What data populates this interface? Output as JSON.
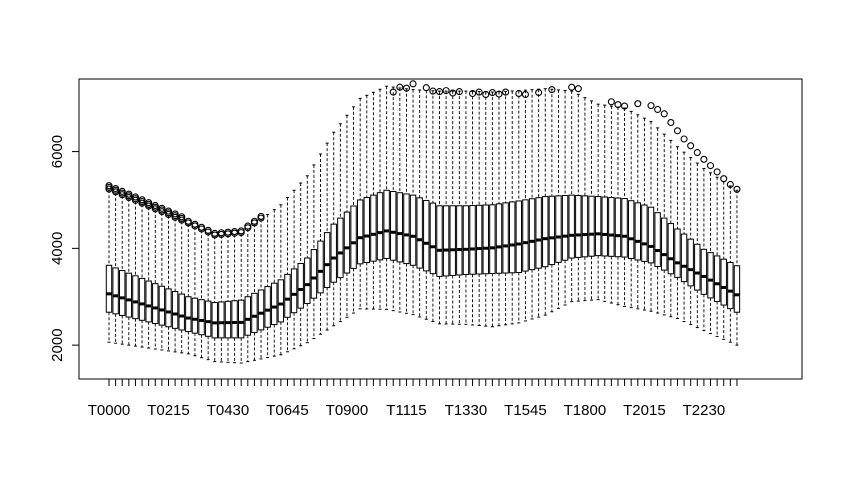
{
  "chart_data": {
    "type": "boxplot",
    "title": "",
    "xlabel": "",
    "ylabel": "",
    "ylim": [
      1300,
      7500
    ],
    "y_ticks": [
      2000,
      4000,
      6000
    ],
    "x_tick_labels": [
      "T0000",
      "T0215",
      "T0430",
      "T0645",
      "T0900",
      "T1115",
      "T1330",
      "T1545",
      "T1800",
      "T2015",
      "T2230"
    ],
    "category_interval_minutes": 15,
    "n_categories": 96,
    "style": {
      "color": "#000000",
      "whisker": "dashed"
    },
    "profile_keyframes": {
      "index": [
        0,
        12,
        16,
        20,
        26,
        30,
        34,
        38,
        42,
        46,
        50,
        54,
        58,
        62,
        66,
        70,
        74,
        78,
        82,
        86,
        90,
        95
      ],
      "median": [
        3060,
        2560,
        2460,
        2470,
        2850,
        3250,
        3800,
        4220,
        4360,
        4250,
        3960,
        3980,
        4010,
        4090,
        4200,
        4270,
        4300,
        4250,
        4040,
        3700,
        3420,
        3040
      ],
      "q1": [
        2680,
        2280,
        2150,
        2150,
        2480,
        2860,
        3300,
        3680,
        3790,
        3650,
        3420,
        3460,
        3480,
        3500,
        3620,
        3800,
        3850,
        3820,
        3700,
        3400,
        3050,
        2680
      ],
      "q3": [
        3650,
        3000,
        2880,
        2930,
        3350,
        3800,
        4500,
        5000,
        5200,
        5100,
        4880,
        4880,
        4900,
        4980,
        5070,
        5100,
        5070,
        5030,
        4850,
        4400,
        3980,
        3640
      ],
      "whisker_low": [
        2060,
        1820,
        1660,
        1630,
        1800,
        2050,
        2400,
        2750,
        2740,
        2630,
        2440,
        2430,
        2380,
        2460,
        2620,
        2900,
        2940,
        2800,
        2700,
        2550,
        2300,
        2000
      ],
      "whisker_high": [
        5200,
        4500,
        4250,
        4300,
        4900,
        5500,
        6400,
        7100,
        7350,
        7280,
        7250,
        7250,
        7230,
        7260,
        7300,
        7250,
        6980,
        6900,
        6620,
        6100,
        5650,
        5200
      ]
    },
    "outlier_range_indices": [
      0,
      23
    ],
    "outliers_upper": [
      {
        "index": 43,
        "value": 7230
      },
      {
        "index": 44,
        "value": 7330
      },
      {
        "index": 45,
        "value": 7310
      },
      {
        "index": 46,
        "value": 7400
      },
      {
        "index": 48,
        "value": 7320
      },
      {
        "index": 49,
        "value": 7250
      },
      {
        "index": 50,
        "value": 7240
      },
      {
        "index": 51,
        "value": 7260
      },
      {
        "index": 52,
        "value": 7210
      },
      {
        "index": 53,
        "value": 7240
      },
      {
        "index": 55,
        "value": 7200
      },
      {
        "index": 56,
        "value": 7230
      },
      {
        "index": 57,
        "value": 7180
      },
      {
        "index": 58,
        "value": 7220
      },
      {
        "index": 59,
        "value": 7190
      },
      {
        "index": 60,
        "value": 7230
      },
      {
        "index": 62,
        "value": 7200
      },
      {
        "index": 63,
        "value": 7180
      },
      {
        "index": 65,
        "value": 7220
      },
      {
        "index": 67,
        "value": 7280
      },
      {
        "index": 70,
        "value": 7330
      },
      {
        "index": 71,
        "value": 7300
      },
      {
        "index": 76,
        "value": 7030
      },
      {
        "index": 77,
        "value": 6970
      },
      {
        "index": 78,
        "value": 6940
      },
      {
        "index": 80,
        "value": 6990
      },
      {
        "index": 82,
        "value": 6950
      },
      {
        "index": 83,
        "value": 6870
      },
      {
        "index": 84,
        "value": 6780
      },
      {
        "index": 85,
        "value": 6600
      },
      {
        "index": 86,
        "value": 6430
      },
      {
        "index": 87,
        "value": 6260
      },
      {
        "index": 88,
        "value": 6120
      },
      {
        "index": 89,
        "value": 5980
      },
      {
        "index": 90,
        "value": 5840
      },
      {
        "index": 91,
        "value": 5710
      },
      {
        "index": 92,
        "value": 5580
      },
      {
        "index": 93,
        "value": 5440
      },
      {
        "index": 94,
        "value": 5320
      },
      {
        "index": 95,
        "value": 5220
      }
    ]
  }
}
